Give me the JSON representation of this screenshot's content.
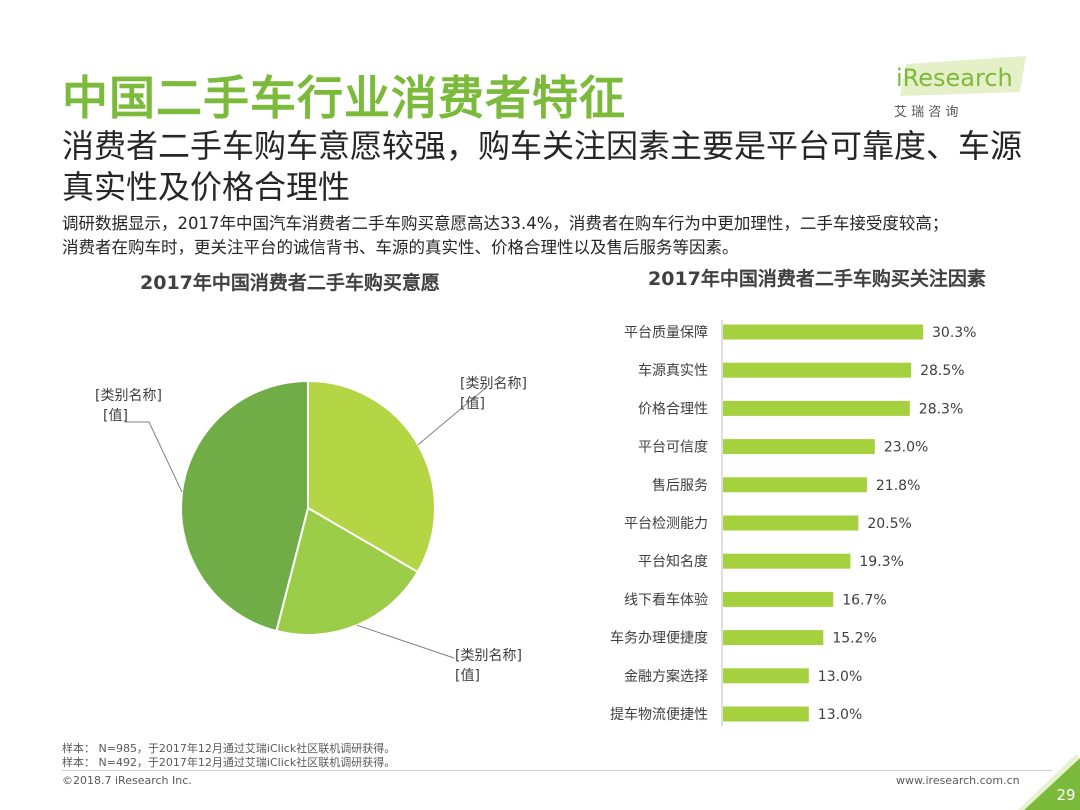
{
  "title": "中国二手车行业消费者特征",
  "subtitle": "消费者二手车购车意愿较强，购车关注因素主要是平台可靠度、车源真实性及价格合理性",
  "summary_line1": "调研数据显示，2017年中国汽车消费者二手车购买意愿高达33.4%，消费者在购车行为中更加理性，二手车接受度较高；",
  "summary_line2": "消费者在购车时，更关注平台的诚信背书、车源的真实性、价格合理性以及售后服务等因素。",
  "logo": {
    "brand": "iResearch",
    "cn": "艾 瑞 咨 询"
  },
  "colors": {
    "accent": "#7cba3c",
    "light_green": "#b4d645",
    "mid_green": "#9ccd48",
    "dark_green": "#70ad47",
    "bar": "#a6d13f"
  },
  "footer": {
    "note1": "样本： N=985，于2017年12月通过艾瑞iClick社区联机调研获得。",
    "note2": "样本： N=492，于2017年12月通过艾瑞iClick社区联机调研获得。",
    "copyright": "©2018.7 iResearch Inc.",
    "website": "www.iresearch.com.cn",
    "page": "29"
  },
  "chart_data": [
    {
      "type": "pie",
      "title": "2017年中国消费者二手车购买意愿",
      "slices": [
        {
          "label_name": "[类别名称]",
          "label_value": "[值]",
          "value": 33.4,
          "color": "#b4d645"
        },
        {
          "label_name": "[类别名称]",
          "label_value": "[值]",
          "value": 20.6,
          "color": "#9ccd48"
        },
        {
          "label_name": "[类别名称]",
          "label_value": "[值]",
          "value": 46.0,
          "color": "#70ad47"
        }
      ]
    },
    {
      "type": "bar",
      "orientation": "horizontal",
      "title": "2017年中国消费者二手车购买关注因素",
      "categories": [
        "平台质量保障",
        "车源真实性",
        "价格合理性",
        "平台可信度",
        "售后服务",
        "平台检测能力",
        "平台知名度",
        "线下看车体验",
        "车务办理便捷度",
        "金融方案选择",
        "提车物流便捷性"
      ],
      "values": [
        30.3,
        28.5,
        28.3,
        23.0,
        21.8,
        20.5,
        19.3,
        16.7,
        15.2,
        13.0,
        13.0
      ],
      "value_labels": [
        "30.3%",
        "28.5%",
        "28.3%",
        "23.0%",
        "21.8%",
        "20.5%",
        "19.3%",
        "16.7%",
        "15.2%",
        "13.0%",
        "13.0%"
      ],
      "xlim": [
        0,
        40
      ]
    }
  ]
}
